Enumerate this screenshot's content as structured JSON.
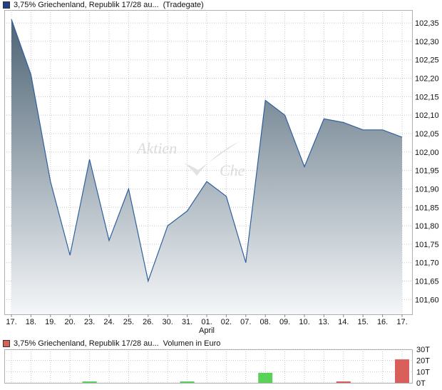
{
  "price_chart": {
    "legend": {
      "label": "3,75% Griechenland, Republik 17/28 au...",
      "exchange": "(Tradegate)",
      "color": "#1f3f8f"
    },
    "watermark": {
      "word1": "Aktien",
      "word2": "Che"
    },
    "line_color": "#2f5f9f",
    "fill_top": "#4e6475",
    "fill_bottom": "#f4f6f8",
    "chart_data": {
      "type": "area",
      "x": [
        "17.",
        "18.",
        "19.",
        "20.",
        "23.",
        "24.",
        "25.",
        "26.",
        "30.",
        "31.",
        "01.",
        "02.",
        "07.",
        "08.",
        "09.",
        "10.",
        "13.",
        "14.",
        "15.",
        "16.",
        "17."
      ],
      "month_label": {
        "at": "01.",
        "text": "April"
      },
      "values": [
        102.36,
        102.21,
        101.92,
        101.72,
        101.98,
        101.76,
        101.9,
        101.65,
        101.8,
        101.84,
        101.92,
        101.88,
        101.7,
        102.14,
        102.1,
        101.96,
        102.09,
        102.08,
        102.06,
        102.06,
        102.04
      ],
      "yticks": [
        "101,60",
        "101,65",
        "101,70",
        "101,75",
        "101,80",
        "101,85",
        "101,90",
        "101,95",
        "102,00",
        "102,05",
        "102,10",
        "102,15",
        "102,20",
        "102,25",
        "102,30",
        "102,35"
      ],
      "ylim": [
        101.56,
        102.385
      ],
      "grid": true
    }
  },
  "volume_chart": {
    "legend": {
      "label": "3,75% Griechenland, Republik 17/28 au...",
      "measure": "Volumen in Euro",
      "color": "#d9605a"
    },
    "chart_data": {
      "type": "bar",
      "x": [
        "17.",
        "18.",
        "19.",
        "20.",
        "23.",
        "24.",
        "25.",
        "26.",
        "30.",
        "31.",
        "01.",
        "02.",
        "07.",
        "08.",
        "09.",
        "10.",
        "13.",
        "14.",
        "15.",
        "16.",
        "17."
      ],
      "values": [
        0,
        0,
        0,
        0,
        1,
        0,
        0,
        0,
        0,
        1,
        0,
        0,
        0,
        9,
        0,
        0,
        0,
        0.7,
        0,
        0,
        21
      ],
      "colors": [
        "#5ad25a",
        "#5ad25a",
        "#5ad25a",
        "#5ad25a",
        "#5ad25a",
        "#5ad25a",
        "#5ad25a",
        "#5ad25a",
        "#5ad25a",
        "#5ad25a",
        "#5ad25a",
        "#5ad25a",
        "#5ad25a",
        "#5ad25a",
        "#5ad25a",
        "#5ad25a",
        "#5ad25a",
        "#d9605a",
        "#5ad25a",
        "#5ad25a",
        "#d9605a"
      ],
      "yticks": [
        "0T",
        "10T",
        "20T",
        "30T"
      ],
      "ylim": [
        0,
        30
      ],
      "grid": true
    }
  }
}
